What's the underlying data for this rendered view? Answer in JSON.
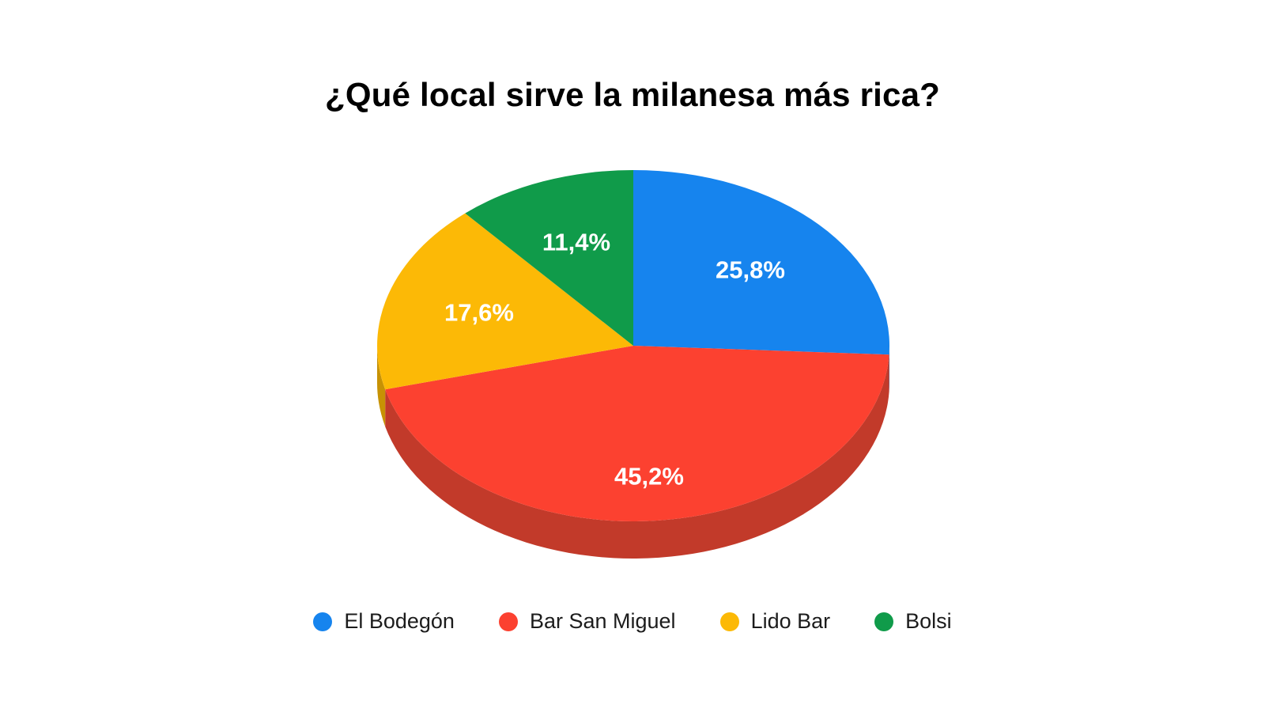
{
  "chart_data": {
    "type": "pie",
    "title": "¿Qué local sirve la milanesa más rica?",
    "categories": [
      "El Bodegón",
      "Bar San Miguel",
      "Lido Bar",
      "Bolsi"
    ],
    "values": [
      25.8,
      45.2,
      17.6,
      11.4
    ],
    "value_labels": [
      "25,8%",
      "45,2%",
      "17,6%",
      "11,4%"
    ],
    "colors": [
      "#1684ee",
      "#fc4130",
      "#fcb906",
      "#109b4a"
    ],
    "side_colors": [
      "#1166b5",
      "#c23a2a",
      "#c79204",
      "#0c7438"
    ],
    "label_color": "#ffffff",
    "title_color": "#000000",
    "legend_text_color": "#1c1c1c",
    "background_color": "#ffffff",
    "effect": "3d",
    "start_angle_deg": 0,
    "direction": "clockwise",
    "legend_position": "bottom",
    "legend": [
      {
        "label": "El Bodegón",
        "color": "#1684ee"
      },
      {
        "label": "Bar San Miguel",
        "color": "#fc4130"
      },
      {
        "label": "Lido Bar",
        "color": "#fcb906"
      },
      {
        "label": "Bolsi",
        "color": "#109b4a"
      }
    ]
  }
}
